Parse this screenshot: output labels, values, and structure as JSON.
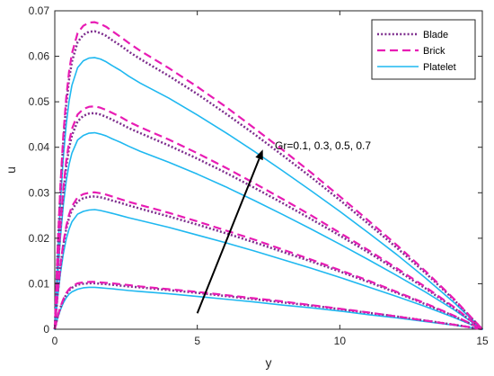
{
  "chart_data": {
    "type": "line",
    "title": "",
    "xlabel": "y",
    "ylabel": "u",
    "xlim": [
      0,
      15
    ],
    "ylim": [
      0,
      0.07
    ],
    "xticks": [
      0,
      5,
      10,
      15
    ],
    "xtick_labels": [
      "0",
      "5",
      "10",
      "15"
    ],
    "yticks": [
      0,
      0.01,
      0.02,
      0.03,
      0.04,
      0.05,
      0.06,
      0.07
    ],
    "ytick_labels": [
      "0",
      "0.01",
      "0.02",
      "0.03",
      "0.04",
      "0.05",
      "0.06",
      "0.07"
    ],
    "grid": false,
    "legend_position": "top-right",
    "annotation": {
      "text": "Gr=0.1, 0.3, 0.5, 0.7",
      "arrow_from": [
        5.0,
        0.0035
      ],
      "arrow_to": [
        7.3,
        0.0395
      ]
    },
    "series": [
      {
        "name": "Blade",
        "color": "#7E2F8E",
        "style": "dotted",
        "curves": [
          {
            "Gr": 0.1,
            "x": [
              0,
              0.1,
              0.2,
              0.3,
              0.4,
              0.5,
              0.6,
              0.8,
              1.0,
              1.2,
              1.4,
              1.6,
              1.8,
              2.0,
              2.3,
              2.6,
              3.0,
              4.0,
              5.0,
              6.0,
              7.0,
              8.0,
              9.0,
              10.0,
              11.0,
              12.0,
              13.0,
              14.0,
              15.0
            ],
            "y": [
              0,
              0.0027,
              0.0048,
              0.0064,
              0.0076,
              0.0085,
              0.0091,
              0.0098,
              0.01,
              0.0101,
              0.0101,
              0.01,
              0.0099,
              0.0098,
              0.0096,
              0.0094,
              0.0092,
              0.0086,
              0.008,
              0.0073,
              0.0066,
              0.0059,
              0.0052,
              0.0044,
              0.0036,
              0.0028,
              0.0019,
              0.001,
              0
            ]
          },
          {
            "Gr": 0.3,
            "x": [
              0,
              0.1,
              0.2,
              0.3,
              0.4,
              0.5,
              0.6,
              0.8,
              1.0,
              1.2,
              1.4,
              1.6,
              1.8,
              2.0,
              2.3,
              2.6,
              3.0,
              4.0,
              5.0,
              6.0,
              7.0,
              8.0,
              9.0,
              10.0,
              11.0,
              12.0,
              13.0,
              14.0,
              15.0
            ],
            "y": [
              0,
              0.0077,
              0.0138,
              0.0185,
              0.022,
              0.0245,
              0.0262,
              0.0281,
              0.0288,
              0.0291,
              0.0292,
              0.029,
              0.0287,
              0.0283,
              0.0278,
              0.0272,
              0.0265,
              0.0248,
              0.023,
              0.0211,
              0.0191,
              0.017,
              0.0149,
              0.0127,
              0.0104,
              0.008,
              0.0055,
              0.0029,
              0
            ]
          },
          {
            "Gr": 0.5,
            "x": [
              0,
              0.1,
              0.2,
              0.3,
              0.4,
              0.5,
              0.6,
              0.8,
              1.0,
              1.2,
              1.4,
              1.6,
              1.8,
              2.0,
              2.3,
              2.6,
              3.0,
              4.0,
              5.0,
              6.0,
              7.0,
              8.0,
              9.0,
              10.0,
              11.0,
              12.0,
              13.0,
              14.0,
              15.0
            ],
            "y": [
              0,
              0.0125,
              0.0224,
              0.03,
              0.0357,
              0.0398,
              0.0426,
              0.0457,
              0.0469,
              0.0474,
              0.0475,
              0.0472,
              0.0467,
              0.0461,
              0.0452,
              0.0442,
              0.0431,
              0.0404,
              0.0375,
              0.0344,
              0.0311,
              0.0277,
              0.0242,
              0.0206,
              0.0169,
              0.013,
              0.009,
              0.0047,
              0
            ]
          },
          {
            "Gr": 0.7,
            "x": [
              0,
              0.1,
              0.2,
              0.3,
              0.4,
              0.5,
              0.6,
              0.8,
              1.0,
              1.2,
              1.4,
              1.6,
              1.8,
              2.0,
              2.3,
              2.6,
              3.0,
              4.0,
              5.0,
              6.0,
              7.0,
              8.0,
              9.0,
              10.0,
              11.0,
              12.0,
              13.0,
              14.0,
              15.0
            ],
            "y": [
              0,
              0.0172,
              0.0309,
              0.0414,
              0.0493,
              0.0549,
              0.0588,
              0.0631,
              0.0647,
              0.0654,
              0.0655,
              0.0651,
              0.0645,
              0.0636,
              0.0624,
              0.061,
              0.0594,
              0.0557,
              0.0517,
              0.0474,
              0.0429,
              0.0382,
              0.0334,
              0.0284,
              0.0232,
              0.0179,
              0.0124,
              0.0065,
              0
            ]
          }
        ]
      },
      {
        "name": "Brick",
        "color": "#E81CB4",
        "style": "dashed",
        "curves": [
          {
            "Gr": 0.1,
            "x": [
              0,
              0.1,
              0.2,
              0.3,
              0.4,
              0.5,
              0.6,
              0.8,
              1.0,
              1.2,
              1.4,
              1.6,
              1.8,
              2.0,
              2.3,
              2.6,
              3.0,
              4.0,
              5.0,
              6.0,
              7.0,
              8.0,
              9.0,
              10.0,
              11.0,
              12.0,
              13.0,
              14.0,
              15.0
            ],
            "y": [
              0,
              0.0028,
              0.005,
              0.0066,
              0.0079,
              0.0088,
              0.0094,
              0.0101,
              0.0103,
              0.0104,
              0.0104,
              0.0103,
              0.0102,
              0.0101,
              0.0099,
              0.0097,
              0.0094,
              0.0088,
              0.0082,
              0.0075,
              0.0068,
              0.0061,
              0.0053,
              0.0045,
              0.0037,
              0.0028,
              0.0019,
              0.001,
              0
            ]
          },
          {
            "Gr": 0.3,
            "x": [
              0,
              0.1,
              0.2,
              0.3,
              0.4,
              0.5,
              0.6,
              0.8,
              1.0,
              1.2,
              1.4,
              1.6,
              1.8,
              2.0,
              2.3,
              2.6,
              3.0,
              4.0,
              5.0,
              6.0,
              7.0,
              8.0,
              9.0,
              10.0,
              11.0,
              12.0,
              13.0,
              14.0,
              15.0
            ],
            "y": [
              0,
              0.0079,
              0.0142,
              0.019,
              0.0226,
              0.0252,
              0.027,
              0.029,
              0.0297,
              0.03,
              0.0301,
              0.0299,
              0.0296,
              0.0292,
              0.0286,
              0.028,
              0.0273,
              0.0256,
              0.0237,
              0.0217,
              0.0197,
              0.0175,
              0.0153,
              0.013,
              0.0107,
              0.0082,
              0.0057,
              0.003,
              0
            ]
          },
          {
            "Gr": 0.5,
            "x": [
              0,
              0.1,
              0.2,
              0.3,
              0.4,
              0.5,
              0.6,
              0.8,
              1.0,
              1.2,
              1.4,
              1.6,
              1.8,
              2.0,
              2.3,
              2.6,
              3.0,
              4.0,
              5.0,
              6.0,
              7.0,
              8.0,
              9.0,
              10.0,
              11.0,
              12.0,
              13.0,
              14.0,
              15.0
            ],
            "y": [
              0,
              0.0129,
              0.0231,
              0.031,
              0.0369,
              0.0411,
              0.044,
              0.0472,
              0.0484,
              0.0489,
              0.049,
              0.0487,
              0.0482,
              0.0476,
              0.0467,
              0.0456,
              0.0444,
              0.0417,
              0.0387,
              0.0355,
              0.0321,
              0.0286,
              0.025,
              0.0212,
              0.0174,
              0.0134,
              0.0093,
              0.0049,
              0
            ]
          },
          {
            "Gr": 0.7,
            "x": [
              0,
              0.1,
              0.2,
              0.3,
              0.4,
              0.5,
              0.6,
              0.8,
              1.0,
              1.2,
              1.4,
              1.6,
              1.8,
              2.0,
              2.3,
              2.6,
              3.0,
              4.0,
              5.0,
              6.0,
              7.0,
              8.0,
              9.0,
              10.0,
              11.0,
              12.0,
              13.0,
              14.0,
              15.0
            ],
            "y": [
              0,
              0.0178,
              0.0319,
              0.0427,
              0.0508,
              0.0566,
              0.0606,
              0.0651,
              0.0667,
              0.0674,
              0.0675,
              0.0671,
              0.0665,
              0.0656,
              0.0643,
              0.0629,
              0.0612,
              0.0574,
              0.0533,
              0.0489,
              0.0442,
              0.0394,
              0.0344,
              0.0292,
              0.0239,
              0.0185,
              0.0128,
              0.0067,
              0
            ]
          }
        ]
      },
      {
        "name": "Platelet",
        "color": "#1FB8F0",
        "style": "solid",
        "curves": [
          {
            "Gr": 0.1,
            "x": [
              0,
              0.1,
              0.2,
              0.3,
              0.4,
              0.5,
              0.6,
              0.8,
              1.0,
              1.2,
              1.4,
              1.6,
              1.8,
              2.0,
              2.3,
              2.6,
              3.0,
              4.0,
              5.0,
              6.0,
              7.0,
              8.0,
              9.0,
              10.0,
              11.0,
              12.0,
              13.0,
              14.0,
              15.0
            ],
            "y": [
              0,
              0.0024,
              0.0043,
              0.0058,
              0.0069,
              0.0077,
              0.0082,
              0.0088,
              0.0091,
              0.0092,
              0.0092,
              0.0091,
              0.009,
              0.0089,
              0.0087,
              0.0085,
              0.0083,
              0.0078,
              0.0072,
              0.0066,
              0.006,
              0.0053,
              0.0047,
              0.004,
              0.0032,
              0.0025,
              0.0017,
              0.0009,
              0
            ]
          },
          {
            "Gr": 0.3,
            "x": [
              0,
              0.1,
              0.2,
              0.3,
              0.4,
              0.5,
              0.6,
              0.8,
              1.0,
              1.2,
              1.4,
              1.6,
              1.8,
              2.0,
              2.3,
              2.6,
              3.0,
              4.0,
              5.0,
              6.0,
              7.0,
              8.0,
              9.0,
              10.0,
              11.0,
              12.0,
              13.0,
              14.0,
              15.0
            ],
            "y": [
              0,
              0.0069,
              0.0124,
              0.0166,
              0.0198,
              0.022,
              0.0236,
              0.0253,
              0.0259,
              0.0262,
              0.0263,
              0.0261,
              0.0258,
              0.0255,
              0.025,
              0.0245,
              0.0239,
              0.0224,
              0.0207,
              0.019,
              0.0172,
              0.0153,
              0.0134,
              0.0114,
              0.0093,
              0.0072,
              0.005,
              0.0026,
              0
            ]
          },
          {
            "Gr": 0.5,
            "x": [
              0,
              0.1,
              0.2,
              0.3,
              0.4,
              0.5,
              0.6,
              0.8,
              1.0,
              1.2,
              1.4,
              1.6,
              1.8,
              2.0,
              2.3,
              2.6,
              3.0,
              4.0,
              5.0,
              6.0,
              7.0,
              8.0,
              9.0,
              10.0,
              11.0,
              12.0,
              13.0,
              14.0,
              15.0
            ],
            "y": [
              0,
              0.0113,
              0.0203,
              0.0273,
              0.0325,
              0.0362,
              0.0387,
              0.0416,
              0.0426,
              0.0431,
              0.0432,
              0.0429,
              0.0425,
              0.0419,
              0.0411,
              0.0402,
              0.0391,
              0.0367,
              0.0341,
              0.0313,
              0.0283,
              0.0252,
              0.022,
              0.0187,
              0.0153,
              0.0118,
              0.0082,
              0.0043,
              0
            ]
          },
          {
            "Gr": 0.7,
            "x": [
              0,
              0.1,
              0.2,
              0.3,
              0.4,
              0.5,
              0.6,
              0.8,
              1.0,
              1.2,
              1.4,
              1.6,
              1.8,
              2.0,
              2.3,
              2.6,
              3.0,
              4.0,
              5.0,
              6.0,
              7.0,
              8.0,
              9.0,
              10.0,
              11.0,
              12.0,
              13.0,
              14.0,
              15.0
            ],
            "y": [
              0,
              0.0157,
              0.0282,
              0.0378,
              0.0449,
              0.0501,
              0.0536,
              0.0575,
              0.059,
              0.0596,
              0.0597,
              0.0594,
              0.0588,
              0.058,
              0.0569,
              0.0556,
              0.0541,
              0.0508,
              0.0471,
              0.0432,
              0.0391,
              0.0348,
              0.0304,
              0.0259,
              0.0212,
              0.0164,
              0.0113,
              0.0059,
              0
            ]
          }
        ]
      }
    ]
  }
}
